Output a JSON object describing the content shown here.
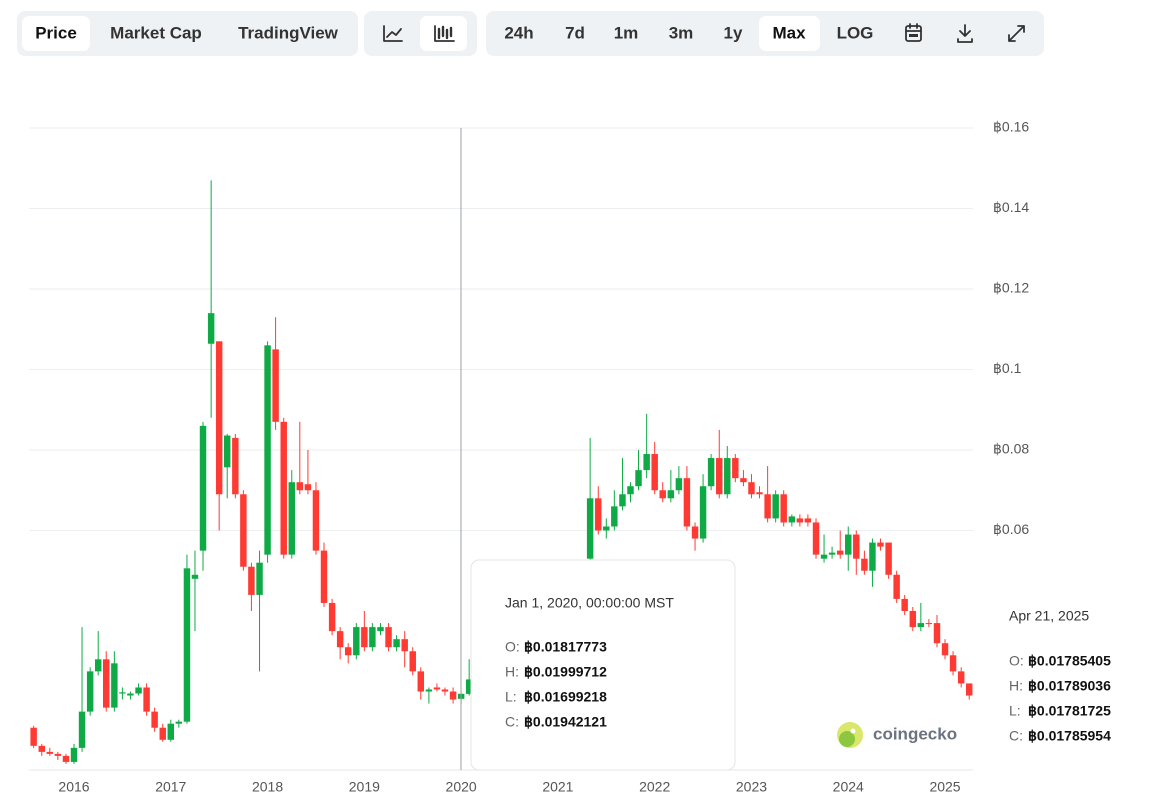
{
  "toolbar": {
    "views": [
      "Price",
      "Market Cap",
      "TradingView"
    ],
    "ranges": [
      "24h",
      "7d",
      "1m",
      "3m",
      "1y",
      "Max"
    ],
    "scale": "LOG"
  },
  "chart_data": {
    "type": "candlestick",
    "up_color": "#0eaa45",
    "down_color": "#ff3a33",
    "x": [
      2015.583,
      2015.667,
      2015.75,
      2015.833,
      2015.917,
      2016.0,
      2016.083,
      2016.167,
      2016.25,
      2016.333,
      2016.417,
      2016.5,
      2016.583,
      2016.667,
      2016.75,
      2016.833,
      2016.917,
      2017.0,
      2017.083,
      2017.167,
      2017.25,
      2017.333,
      2017.417,
      2017.5,
      2017.583,
      2017.667,
      2017.75,
      2017.833,
      2017.917,
      2018.0,
      2018.083,
      2018.167,
      2018.25,
      2018.333,
      2018.417,
      2018.5,
      2018.583,
      2018.667,
      2018.75,
      2018.833,
      2018.917,
      2019.0,
      2019.083,
      2019.167,
      2019.25,
      2019.333,
      2019.417,
      2019.5,
      2019.583,
      2019.667,
      2019.75,
      2019.833,
      2019.917,
      2020.0,
      2020.083,
      2020.167,
      2020.25,
      2020.333,
      2020.417,
      2020.5,
      2020.583,
      2020.667,
      2020.75,
      2020.833,
      2020.917,
      2021.0,
      2021.083,
      2021.167,
      2021.25,
      2021.333,
      2021.417,
      2021.5,
      2021.583,
      2021.667,
      2021.75,
      2021.833,
      2021.917,
      2022.0,
      2022.083,
      2022.167,
      2022.25,
      2022.333,
      2022.417,
      2022.5,
      2022.583,
      2022.667,
      2022.75,
      2022.833,
      2022.917,
      2023.0,
      2023.083,
      2023.167,
      2023.25,
      2023.333,
      2023.417,
      2023.5,
      2023.583,
      2023.667,
      2023.75,
      2023.833,
      2023.917,
      2024.0,
      2024.083,
      2024.167,
      2024.25,
      2024.333,
      2024.417,
      2024.5,
      2024.583,
      2024.667,
      2024.75,
      2024.833,
      2024.917,
      2025.0,
      2025.083,
      2025.167,
      2025.25
    ],
    "ohlc": [
      [
        0.011,
        0.0115,
        0.006,
        0.0065
      ],
      [
        0.0065,
        0.007,
        0.004,
        0.005
      ],
      [
        0.005,
        0.006,
        0.004,
        0.0045
      ],
      [
        0.0045,
        0.005,
        0.003,
        0.004
      ],
      [
        0.004,
        0.0045,
        0.002,
        0.0025
      ],
      [
        0.0025,
        0.007,
        0.002,
        0.006
      ],
      [
        0.006,
        0.036,
        0.005,
        0.015
      ],
      [
        0.015,
        0.026,
        0.014,
        0.025
      ],
      [
        0.025,
        0.035,
        0.024,
        0.028
      ],
      [
        0.028,
        0.03,
        0.015,
        0.016
      ],
      [
        0.016,
        0.03,
        0.015,
        0.027
      ],
      [
        0.0195,
        0.021,
        0.018,
        0.0198
      ],
      [
        0.019,
        0.02,
        0.018,
        0.0195
      ],
      [
        0.0195,
        0.022,
        0.019,
        0.021
      ],
      [
        0.021,
        0.022,
        0.014,
        0.015
      ],
      [
        0.015,
        0.016,
        0.01,
        0.011
      ],
      [
        0.011,
        0.012,
        0.0075,
        0.008
      ],
      [
        0.008,
        0.013,
        0.0075,
        0.012
      ],
      [
        0.012,
        0.013,
        0.011,
        0.0125
      ],
      [
        0.0125,
        0.054,
        0.012,
        0.0506
      ],
      [
        0.048,
        0.055,
        0.035,
        0.049
      ],
      [
        0.055,
        0.087,
        0.05,
        0.086
      ],
      [
        0.1064,
        0.147,
        0.088,
        0.114
      ],
      [
        0.107,
        0.107,
        0.06,
        0.069
      ],
      [
        0.0757,
        0.084,
        0.068,
        0.0836
      ],
      [
        0.083,
        0.084,
        0.068,
        0.069
      ],
      [
        0.069,
        0.07,
        0.05,
        0.051
      ],
      [
        0.051,
        0.052,
        0.04,
        0.044
      ],
      [
        0.044,
        0.055,
        0.025,
        0.052
      ],
      [
        0.054,
        0.107,
        0.052,
        0.106
      ],
      [
        0.105,
        0.113,
        0.085,
        0.087
      ],
      [
        0.087,
        0.088,
        0.053,
        0.054
      ],
      [
        0.054,
        0.075,
        0.053,
        0.072
      ],
      [
        0.072,
        0.087,
        0.069,
        0.07
      ],
      [
        0.0715,
        0.08,
        0.069,
        0.07
      ],
      [
        0.07,
        0.072,
        0.054,
        0.055
      ],
      [
        0.055,
        0.057,
        0.041,
        0.042
      ],
      [
        0.042,
        0.043,
        0.034,
        0.035
      ],
      [
        0.035,
        0.036,
        0.028,
        0.031
      ],
      [
        0.031,
        0.032,
        0.027,
        0.029
      ],
      [
        0.029,
        0.037,
        0.028,
        0.036
      ],
      [
        0.036,
        0.04,
        0.03,
        0.031
      ],
      [
        0.031,
        0.037,
        0.03,
        0.036
      ],
      [
        0.035,
        0.037,
        0.034,
        0.036
      ],
      [
        0.036,
        0.037,
        0.03,
        0.031
      ],
      [
        0.031,
        0.034,
        0.03,
        0.033
      ],
      [
        0.033,
        0.035,
        0.026,
        0.03
      ],
      [
        0.03,
        0.031,
        0.024,
        0.025
      ],
      [
        0.025,
        0.026,
        0.018,
        0.02
      ],
      [
        0.02,
        0.021,
        0.017,
        0.0205
      ],
      [
        0.021,
        0.022,
        0.02,
        0.0205
      ],
      [
        0.0205,
        0.021,
        0.019,
        0.02
      ],
      [
        0.02,
        0.021,
        0.017,
        0.018
      ],
      [
        0.01817773,
        0.01999712,
        0.01699218,
        0.01942121
      ],
      [
        0.0194,
        0.028,
        0.019,
        0.023
      ],
      [
        0.023,
        0.024,
        0.015,
        0.018
      ],
      [
        0.018,
        0.022,
        0.017,
        0.021
      ],
      [
        0.021,
        0.024,
        0.02,
        0.023
      ],
      [
        0.023,
        0.024,
        0.021,
        0.022
      ],
      [
        0.022,
        0.028,
        0.021,
        0.027
      ],
      [
        0.027,
        0.031,
        0.025,
        0.026
      ],
      [
        0.026,
        0.027,
        0.022,
        0.023
      ],
      [
        0.023,
        0.024,
        0.02,
        0.021
      ],
      [
        0.021,
        0.025,
        0.02,
        0.024
      ],
      [
        0.024,
        0.026,
        0.021,
        0.025
      ],
      [
        0.025,
        0.033,
        0.024,
        0.031
      ],
      [
        0.031,
        0.04,
        0.03,
        0.038
      ],
      [
        0.038,
        0.046,
        0.036,
        0.045
      ],
      [
        0.045,
        0.05,
        0.044,
        0.048
      ],
      [
        0.053,
        0.083,
        0.05,
        0.068
      ],
      [
        0.068,
        0.071,
        0.059,
        0.06
      ],
      [
        0.06,
        0.063,
        0.058,
        0.061
      ],
      [
        0.061,
        0.07,
        0.06,
        0.066
      ],
      [
        0.066,
        0.078,
        0.065,
        0.069
      ],
      [
        0.069,
        0.072,
        0.067,
        0.071
      ],
      [
        0.071,
        0.08,
        0.07,
        0.075
      ],
      [
        0.075,
        0.089,
        0.073,
        0.079
      ],
      [
        0.079,
        0.082,
        0.069,
        0.07
      ],
      [
        0.07,
        0.072,
        0.067,
        0.068
      ],
      [
        0.068,
        0.075,
        0.067,
        0.07
      ],
      [
        0.07,
        0.076,
        0.069,
        0.073
      ],
      [
        0.073,
        0.076,
        0.06,
        0.061
      ],
      [
        0.061,
        0.062,
        0.055,
        0.058
      ],
      [
        0.058,
        0.074,
        0.057,
        0.071
      ],
      [
        0.071,
        0.079,
        0.07,
        0.078
      ],
      [
        0.078,
        0.085,
        0.068,
        0.069
      ],
      [
        0.069,
        0.081,
        0.068,
        0.078
      ],
      [
        0.078,
        0.079,
        0.072,
        0.073
      ],
      [
        0.073,
        0.075,
        0.071,
        0.072
      ],
      [
        0.072,
        0.074,
        0.068,
        0.069
      ],
      [
        0.0695,
        0.071,
        0.068,
        0.069
      ],
      [
        0.069,
        0.076,
        0.062,
        0.063
      ],
      [
        0.063,
        0.07,
        0.062,
        0.069
      ],
      [
        0.069,
        0.07,
        0.061,
        0.062
      ],
      [
        0.062,
        0.064,
        0.061,
        0.0635
      ],
      [
        0.063,
        0.064,
        0.061,
        0.062
      ],
      [
        0.063,
        0.064,
        0.061,
        0.062
      ],
      [
        0.062,
        0.063,
        0.053,
        0.054
      ],
      [
        0.053,
        0.059,
        0.052,
        0.054
      ],
      [
        0.054,
        0.056,
        0.053,
        0.0545
      ],
      [
        0.055,
        0.06,
        0.053,
        0.054
      ],
      [
        0.054,
        0.061,
        0.05,
        0.059
      ],
      [
        0.059,
        0.06,
        0.049,
        0.053
      ],
      [
        0.053,
        0.055,
        0.049,
        0.05
      ],
      [
        0.05,
        0.058,
        0.046,
        0.057
      ],
      [
        0.057,
        0.058,
        0.055,
        0.056
      ],
      [
        0.057,
        0.057,
        0.048,
        0.049
      ],
      [
        0.049,
        0.05,
        0.042,
        0.043
      ],
      [
        0.043,
        0.044,
        0.039,
        0.04
      ],
      [
        0.04,
        0.041,
        0.035,
        0.036
      ],
      [
        0.036,
        0.042,
        0.035,
        0.037
      ],
      [
        0.037,
        0.038,
        0.036,
        0.0368
      ],
      [
        0.037,
        0.039,
        0.031,
        0.032
      ],
      [
        0.032,
        0.033,
        0.028,
        0.029
      ],
      [
        0.029,
        0.03,
        0.024,
        0.025
      ],
      [
        0.025,
        0.026,
        0.021,
        0.022
      ],
      [
        0.022,
        0.022,
        0.018,
        0.019
      ]
    ],
    "xlim": [
      2015.535,
      2025.289
    ],
    "xticks": [
      2016,
      2017,
      2018,
      2019,
      2020,
      2021,
      2022,
      2023,
      2024,
      2025
    ],
    "ylim": [
      0,
      0.16
    ],
    "yticks": [
      {
        "value": 0.06,
        "label": "฿0.06"
      },
      {
        "value": 0.08,
        "label": "฿0.08"
      },
      {
        "value": 0.1,
        "label": "฿0.1"
      },
      {
        "value": 0.12,
        "label": "฿0.12"
      },
      {
        "value": 0.14,
        "label": "฿0.14"
      },
      {
        "value": 0.16,
        "label": "฿0.16"
      }
    ],
    "grid": true
  },
  "tooltip": {
    "date": "Jan 1, 2020, 00:00:00 MST",
    "rows": [
      {
        "label": "O:",
        "value": "฿0.01817773"
      },
      {
        "label": "H:",
        "value": "฿0.01999712"
      },
      {
        "label": "L:",
        "value": "฿0.01699218"
      },
      {
        "label": "C:",
        "value": "฿0.01942121"
      }
    ]
  },
  "latest": {
    "date": "Apr 21, 2025",
    "rows": [
      {
        "label": "O:",
        "value": "฿0.01785405"
      },
      {
        "label": "H:",
        "value": "฿0.01789036"
      },
      {
        "label": "L:",
        "value": "฿0.01781725"
      },
      {
        "label": "C:",
        "value": "฿0.01785954"
      }
    ]
  },
  "watermark": "coingecko"
}
